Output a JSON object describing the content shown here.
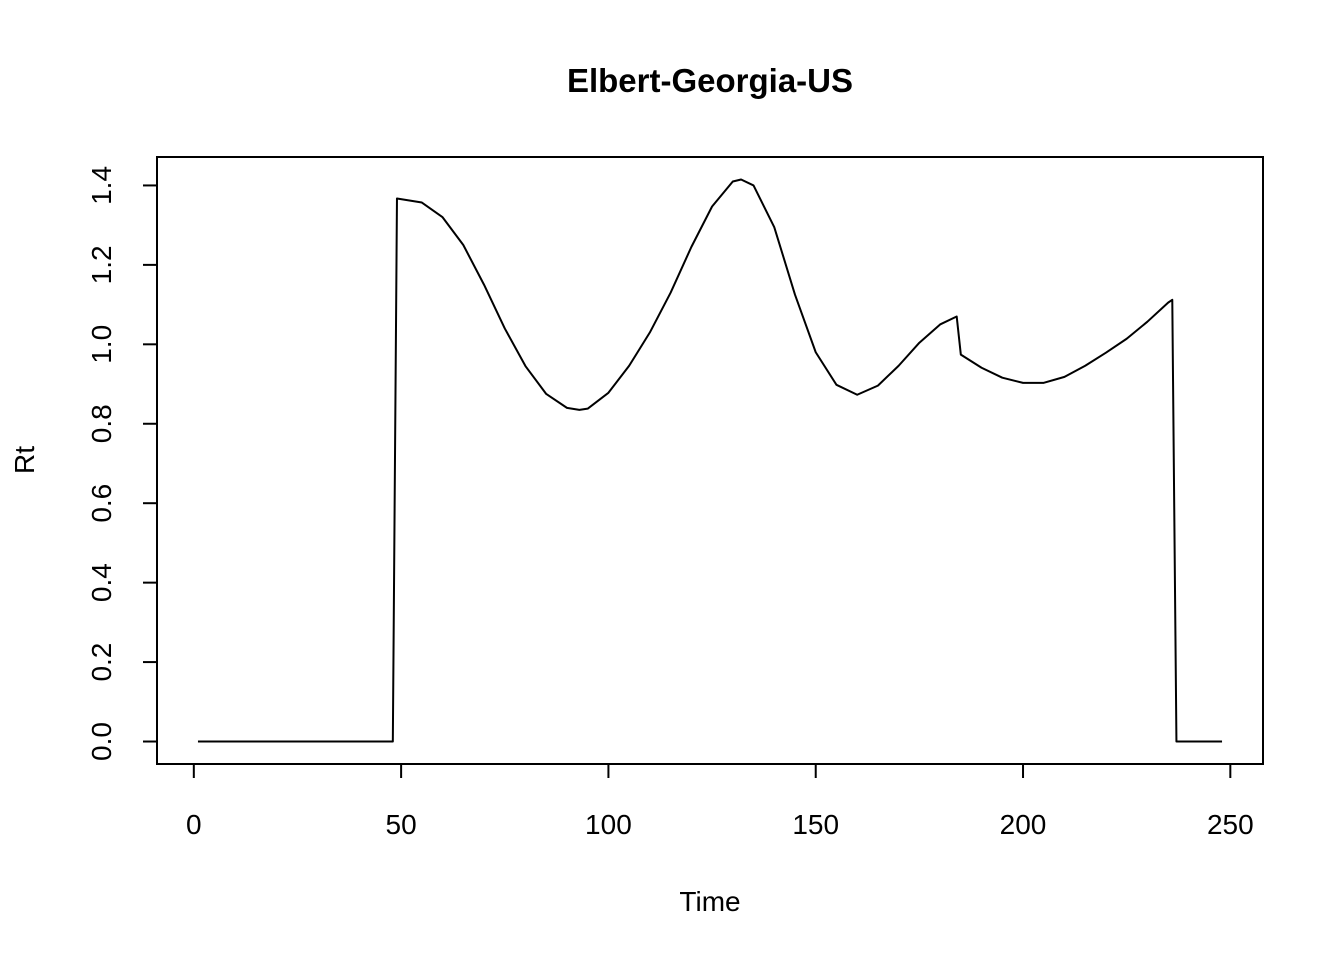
{
  "chart_data": {
    "type": "line",
    "title": "Elbert-Georgia-US",
    "x_label": "Time",
    "y_label": "Rt",
    "x": [
      1,
      48,
      49,
      55,
      60,
      65,
      70,
      75,
      80,
      85,
      90,
      93,
      95,
      100,
      105,
      110,
      115,
      120,
      125,
      130,
      132,
      135,
      140,
      145,
      150,
      155,
      160,
      165,
      170,
      175,
      180,
      184,
      185,
      190,
      195,
      200,
      205,
      210,
      215,
      220,
      225,
      230,
      235,
      236,
      237,
      248
    ],
    "series": [
      {
        "name": "Rt",
        "color": "#000000",
        "values": [
          0,
          0,
          1.367,
          1.357,
          1.32,
          1.25,
          1.15,
          1.04,
          0.945,
          0.875,
          0.84,
          0.835,
          0.838,
          0.878,
          0.946,
          1.03,
          1.13,
          1.245,
          1.347,
          1.41,
          1.415,
          1.4,
          1.295,
          1.125,
          0.98,
          0.898,
          0.873,
          0.896,
          0.946,
          1.004,
          1.05,
          1.07,
          0.974,
          0.941,
          0.916,
          0.903,
          0.903,
          0.918,
          0.946,
          0.979,
          1.014,
          1.057,
          1.105,
          1.112,
          0,
          0
        ]
      }
    ],
    "xlim": [
      -8.88,
      257.88
    ],
    "xticks": [
      0,
      50,
      100,
      150,
      200,
      250
    ],
    "ylim": [
      -0.0566,
      1.4716
    ],
    "yticks": [
      {
        "value": 0,
        "label": "0.0"
      },
      {
        "value": 0.2,
        "label": "0.2"
      },
      {
        "value": 0.4,
        "label": "0.4"
      },
      {
        "value": 0.6,
        "label": "0.6"
      },
      {
        "value": 0.8,
        "label": "0.8"
      },
      {
        "value": 1,
        "label": "1.0"
      },
      {
        "value": 1.2,
        "label": "1.2"
      },
      {
        "value": 1.4,
        "label": "1.4"
      }
    ]
  }
}
